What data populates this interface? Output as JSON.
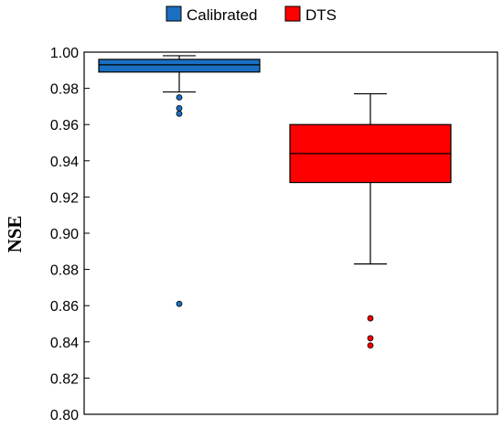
{
  "chart_data": {
    "type": "box",
    "title": "",
    "xlabel": "",
    "ylabel": "NSE",
    "ylim": [
      0.8,
      1.0
    ],
    "yticks": [
      "0.80",
      "0.82",
      "0.84",
      "0.86",
      "0.88",
      "0.90",
      "0.92",
      "0.94",
      "0.96",
      "0.98",
      "1.00"
    ],
    "grid": false,
    "legend": "top",
    "series": [
      {
        "name": "Calibrated",
        "color": "#1a6fc2",
        "whisker_low": 0.978,
        "q1": 0.989,
        "median": 0.993,
        "q3": 0.996,
        "whisker_high": 0.998,
        "outliers": [
          0.975,
          0.969,
          0.966,
          0.861
        ]
      },
      {
        "name": "DTS",
        "color": "#ff0000",
        "whisker_low": 0.883,
        "q1": 0.928,
        "median": 0.944,
        "q3": 0.96,
        "whisker_high": 0.977,
        "outliers": [
          0.853,
          0.842,
          0.838
        ]
      }
    ]
  }
}
